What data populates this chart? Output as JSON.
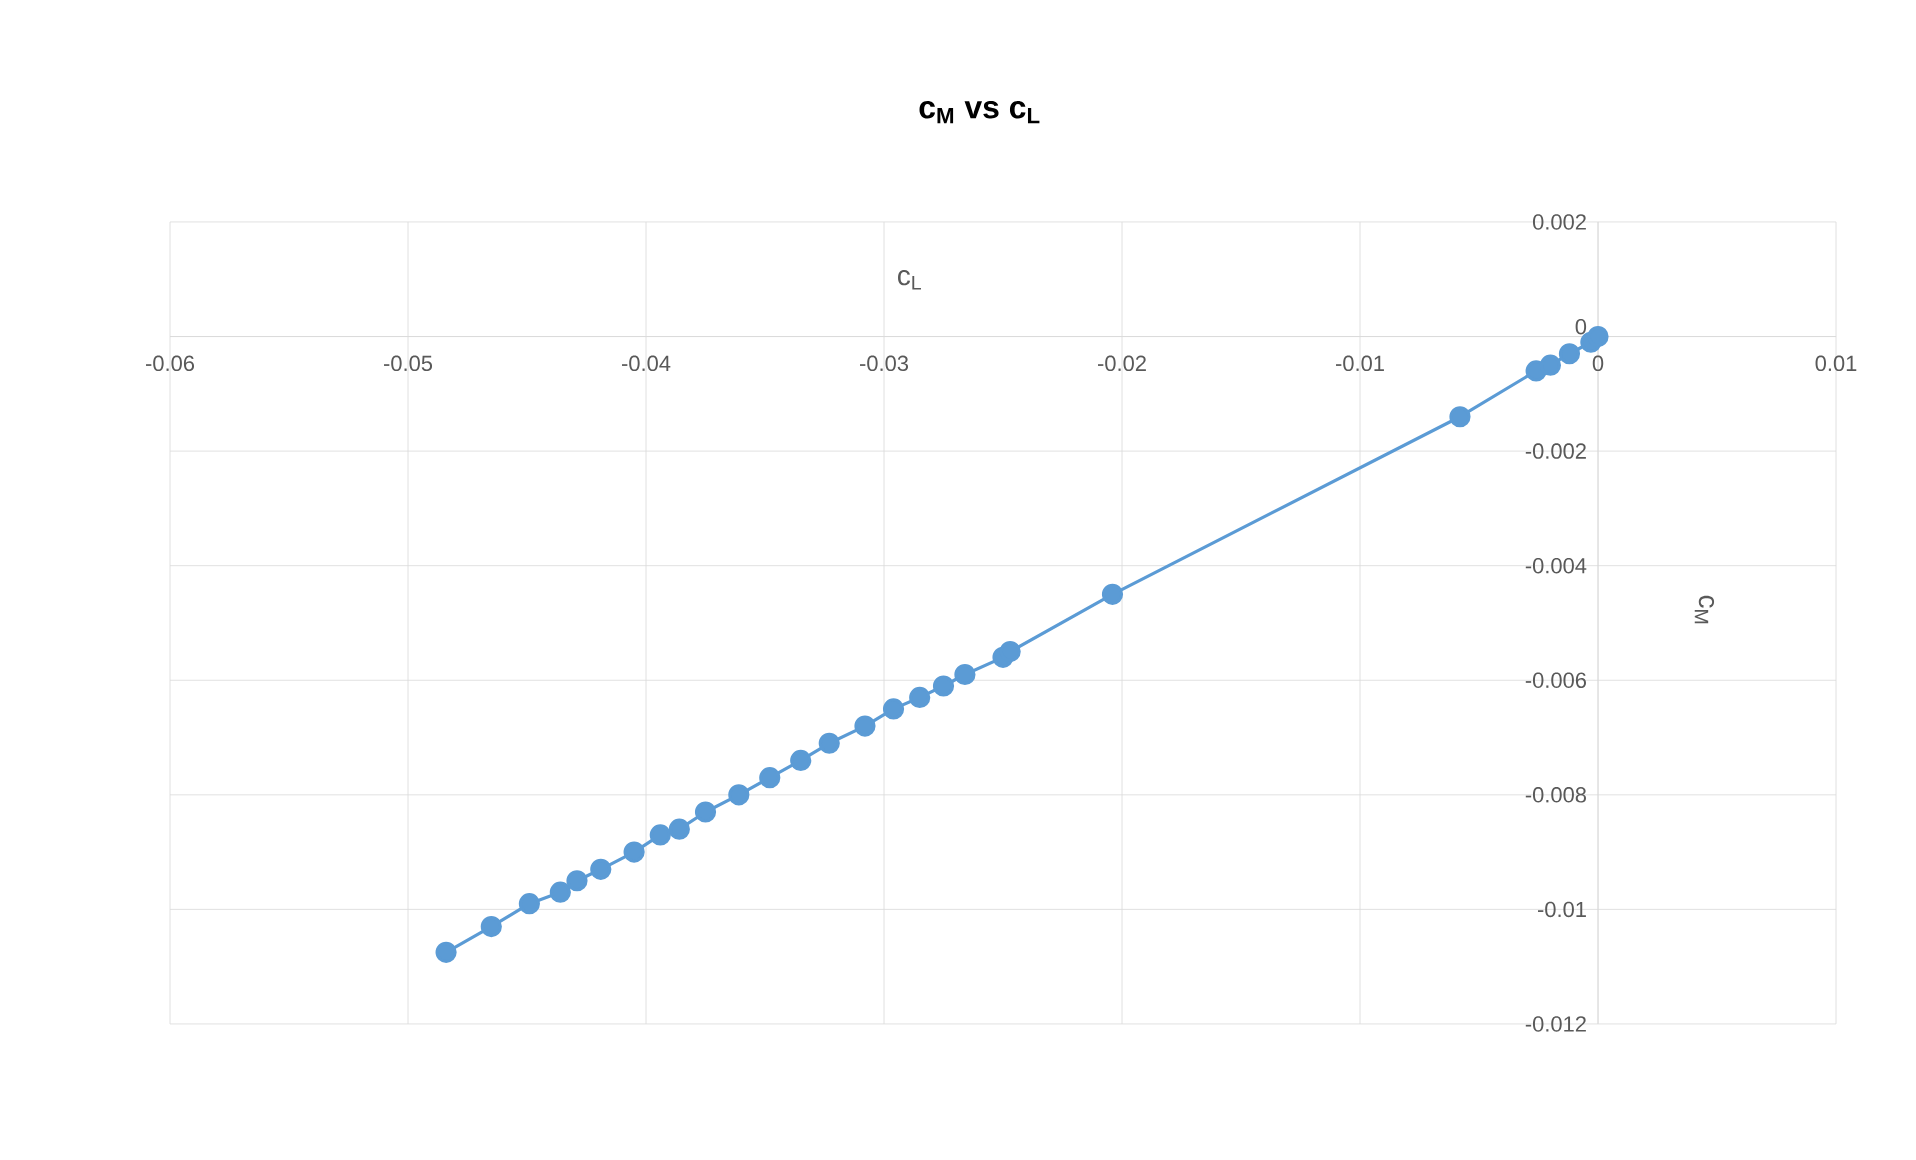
{
  "chart_data": {
    "type": "line",
    "title": "c$_{M}$ vs c$_{L}$",
    "xlabel": "c$_{L}$",
    "ylabel": "c$_{M}$",
    "x": [
      -0.0484,
      -0.0465,
      -0.0449,
      -0.0436,
      -0.0429,
      -0.0419,
      -0.0405,
      -0.0394,
      -0.0386,
      -0.0375,
      -0.0361,
      -0.0348,
      -0.0335,
      -0.0323,
      -0.0308,
      -0.0296,
      -0.0285,
      -0.0275,
      -0.0266,
      -0.025,
      -0.0247,
      -0.0204,
      -0.0058,
      -0.0026,
      -0.002,
      -0.0012,
      -0.0003,
      0
    ],
    "series": [
      {
        "color": "#5b9bd5",
        "values": [
          -0.01075,
          -0.0103,
          -0.0099,
          -0.0097,
          -0.0095,
          -0.0093,
          -0.009,
          -0.0087,
          -0.0086,
          -0.0083,
          -0.008,
          -0.0077,
          -0.0074,
          -0.0071,
          -0.0068,
          -0.0065,
          -0.0063,
          -0.0061,
          -0.0059,
          -0.0056,
          -0.0055,
          -0.0045,
          -0.0014,
          -0.0006,
          -0.0005,
          -0.0003,
          -0.0001,
          0
        ]
      }
    ],
    "xlim": [
      -0.06,
      0.01
    ],
    "ylim": [
      -0.012,
      0.002
    ],
    "xticks": [
      -0.06,
      -0.05,
      -0.04,
      -0.03,
      -0.02,
      -0.01,
      0,
      0.01
    ],
    "yticks": [
      -0.012,
      -0.01,
      -0.008,
      -0.006,
      -0.004,
      -0.002,
      0,
      0.002
    ],
    "grid": true,
    "marker": "circle",
    "line_style": "solid"
  }
}
